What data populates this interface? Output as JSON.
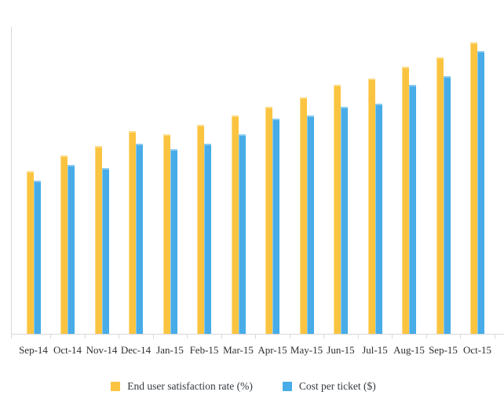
{
  "chart_data": {
    "type": "bar",
    "title": "",
    "xlabel": "",
    "ylabel": "",
    "categories": [
      "Sep-14",
      "Oct-14",
      "Nov-14",
      "Dec-14",
      "Jan-15",
      "Feb-15",
      "Mar-15",
      "Apr-15",
      "May-15",
      "Jun-15",
      "Jul-15",
      "Aug-15",
      "Sep-15",
      "Oct-15"
    ],
    "series": [
      {
        "name": "End user satisfaction rate (%)",
        "color": "#FBC440",
        "highlight": "#FDDA85",
        "values": [
          53,
          58,
          61,
          66,
          65,
          68,
          71,
          74,
          77,
          81,
          83,
          87,
          90,
          95
        ]
      },
      {
        "name": "Cost per ticket ($)",
        "color": "#47ACE8",
        "highlight": "#89CAF0",
        "values": [
          50,
          55,
          54,
          62,
          60,
          62,
          65,
          70,
          71,
          74,
          75,
          81,
          84,
          92
        ]
      }
    ],
    "ylim": [
      0,
      100
    ],
    "grid": false,
    "y_axis_tick_labels_visible": false,
    "legend_position": "bottom"
  },
  "axis": {
    "color": "#d9d9d9"
  },
  "text": {
    "label_color": "#2e2e2e"
  }
}
